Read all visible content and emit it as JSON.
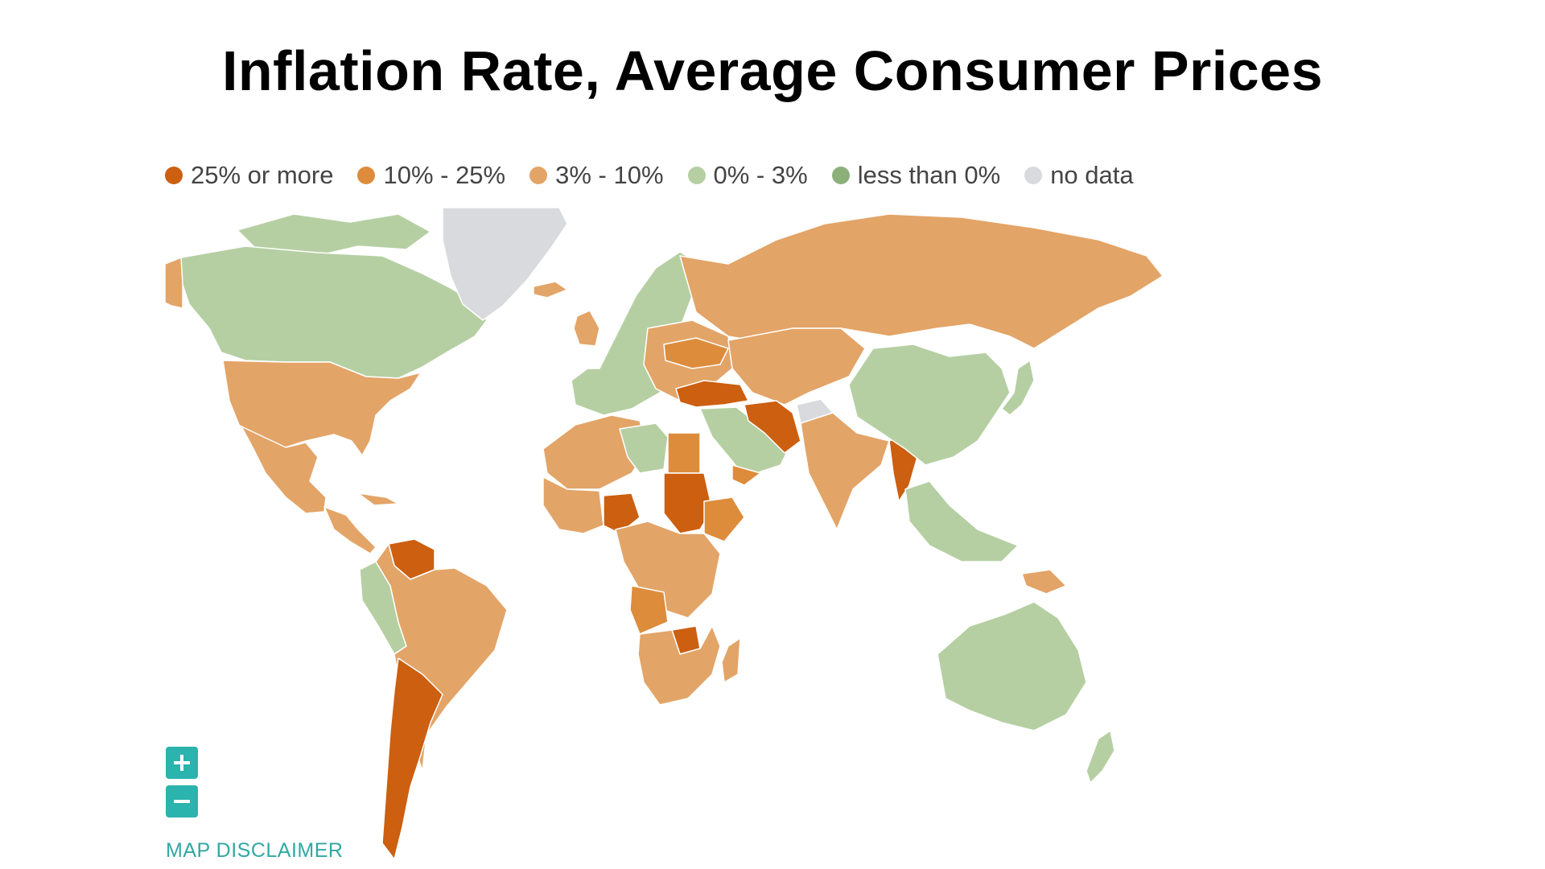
{
  "title": "Inflation Rate, Average Consumer Prices",
  "legend": [
    {
      "label": "25% or more",
      "color": "#cc5f10"
    },
    {
      "label": "10% - 25%",
      "color": "#dd8c3c"
    },
    {
      "label": "3% - 10%",
      "color": "#e3a467"
    },
    {
      "label": "0% - 3%",
      "color": "#b5cfa2"
    },
    {
      "label": "less than 0%",
      "color": "#8db07a"
    },
    {
      "label": "no data",
      "color": "#d9dadd"
    }
  ],
  "map_controls": {
    "zoom_in_icon": "plus-icon",
    "zoom_out_icon": "minus-icon",
    "disclaimer": "MAP DISCLAIMER"
  },
  "regions": [
    {
      "name": "North America",
      "category": "0% - 3%",
      "color": "#b5cfa2"
    },
    {
      "name": "Alaska",
      "category": "3% - 10%",
      "color": "#e3a467"
    },
    {
      "name": "Greenland",
      "category": "no data",
      "color": "#d9dadd"
    },
    {
      "name": "United States",
      "category": "3% - 10%",
      "color": "#e3a467"
    },
    {
      "name": "Mexico",
      "category": "3% - 10%",
      "color": "#e3a467"
    },
    {
      "name": "Central America",
      "category": "3% - 10%",
      "color": "#e3a467"
    },
    {
      "name": "Venezuela",
      "category": "25% or more",
      "color": "#cc5f10"
    },
    {
      "name": "South America",
      "category": "3% - 10%",
      "color": "#e3a467"
    },
    {
      "name": "Ecuador-Peru",
      "category": "0% - 3%",
      "color": "#b5cfa2"
    },
    {
      "name": "Argentina",
      "category": "25% or more",
      "color": "#cc5f10"
    },
    {
      "name": "Iceland",
      "category": "3% - 10%",
      "color": "#e3a467"
    },
    {
      "name": "Britain",
      "category": "3% - 10%",
      "color": "#e3a467"
    },
    {
      "name": "Europe",
      "category": "0% - 3%",
      "color": "#b5cfa2"
    },
    {
      "name": "Eastern Europe",
      "category": "3% - 10%",
      "color": "#e3a467"
    },
    {
      "name": "Ukraine",
      "category": "10% - 25%",
      "color": "#dd8c3c"
    },
    {
      "name": "Russia",
      "category": "3% - 10%",
      "color": "#e3a467"
    },
    {
      "name": "Turkey",
      "category": "25% or more",
      "color": "#cc5f10"
    },
    {
      "name": "Iran",
      "category": "25% or more",
      "color": "#cc5f10"
    },
    {
      "name": "Arabia",
      "category": "0% - 3%",
      "color": "#b5cfa2"
    },
    {
      "name": "Yemen",
      "category": "10% - 25%",
      "color": "#dd8c3c"
    },
    {
      "name": "Afghanistan",
      "category": "no data",
      "color": "#d9dadd"
    },
    {
      "name": "Central Asia",
      "category": "3% - 10%",
      "color": "#e3a467"
    },
    {
      "name": "South Asia",
      "category": "3% - 10%",
      "color": "#e3a467"
    },
    {
      "name": "Myanmar",
      "category": "25% or more",
      "color": "#cc5f10"
    },
    {
      "name": "China",
      "category": "0% - 3%",
      "color": "#b5cfa2"
    },
    {
      "name": "Southeast Asia",
      "category": "0% - 3%",
      "color": "#b5cfa2"
    },
    {
      "name": "Japan",
      "category": "0% - 3%",
      "color": "#b5cfa2"
    },
    {
      "name": "North Africa",
      "category": "3% - 10%",
      "color": "#e3a467"
    },
    {
      "name": "Libya",
      "category": "0% - 3%",
      "color": "#b5cfa2"
    },
    {
      "name": "Egypt",
      "category": "10% - 25%",
      "color": "#dd8c3c"
    },
    {
      "name": "Sudan",
      "category": "25% or more",
      "color": "#cc5f10"
    },
    {
      "name": "Ethiopia",
      "category": "10% - 25%",
      "color": "#dd8c3c"
    },
    {
      "name": "Nigeria",
      "category": "25% or more",
      "color": "#cc5f10"
    },
    {
      "name": "Central Africa",
      "category": "3% - 10%",
      "color": "#e3a467"
    },
    {
      "name": "Angola",
      "category": "10% - 25%",
      "color": "#dd8c3c"
    },
    {
      "name": "Zimbabwe",
      "category": "25% or more",
      "color": "#cc5f10"
    },
    {
      "name": "Southern Africa",
      "category": "3% - 10%",
      "color": "#e3a467"
    },
    {
      "name": "Madagascar",
      "category": "3% - 10%",
      "color": "#e3a467"
    },
    {
      "name": "Australia",
      "category": "0% - 3%",
      "color": "#b5cfa2"
    },
    {
      "name": "New Zealand",
      "category": "0% - 3%",
      "color": "#b5cfa2"
    },
    {
      "name": "Papua New Guinea",
      "category": "3% - 10%",
      "color": "#e3a467"
    }
  ]
}
